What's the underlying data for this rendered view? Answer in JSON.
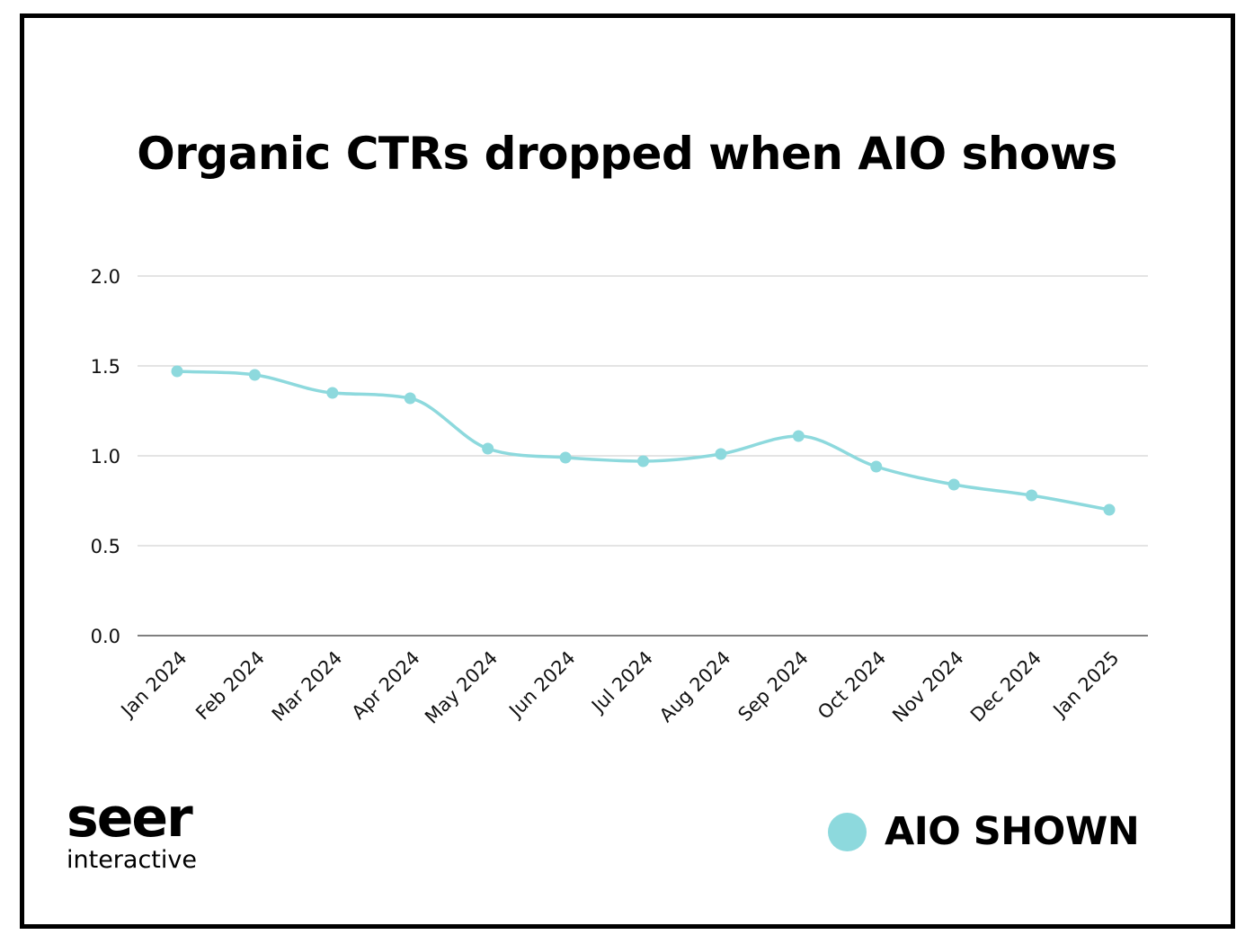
{
  "chart_data": {
    "type": "line",
    "title": "Organic CTRs dropped when AIO shows",
    "categories": [
      "Jan 2024",
      "Feb 2024",
      "Mar 2024",
      "Apr 2024",
      "May 2024",
      "Jun 2024",
      "Jul 2024",
      "Aug 2024",
      "Sep 2024",
      "Oct 2024",
      "Nov 2024",
      "Dec 2024",
      "Jan 2025"
    ],
    "series": [
      {
        "name": "AIO SHOWN",
        "values": [
          1.47,
          1.45,
          1.35,
          1.32,
          1.04,
          0.99,
          0.97,
          1.01,
          1.11,
          0.94,
          0.84,
          0.78,
          0.7
        ],
        "color": "#8dd9dd"
      }
    ],
    "yticks": [
      "0.0",
      "0.5",
      "1.0",
      "1.5",
      "2.0"
    ],
    "ylim": [
      0,
      2
    ],
    "xlabel": "",
    "ylabel": "",
    "grid": true,
    "legend": "bottom-right",
    "smooth": true
  },
  "brand": {
    "name": "seer",
    "tagline": "interactive"
  },
  "colors": {
    "line": "#8dd9dd",
    "grid": "#d4d4d4",
    "axis": "#555555",
    "text": "#000000"
  }
}
